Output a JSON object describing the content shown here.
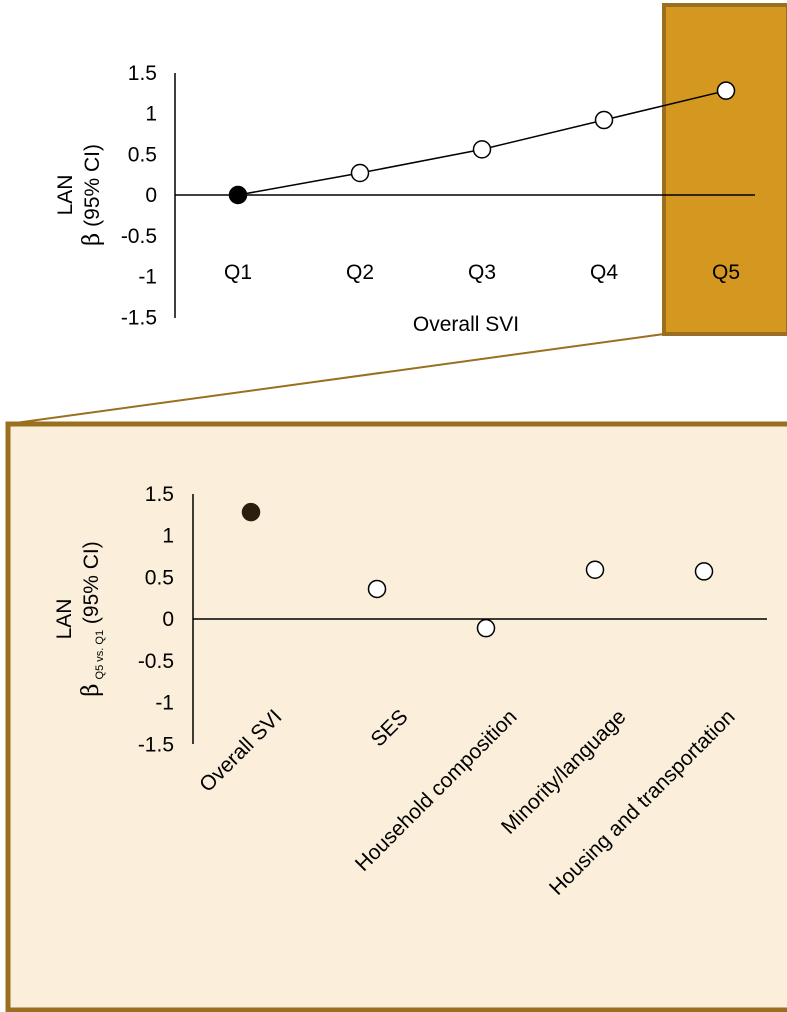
{
  "colors": {
    "highlight_fill": "#D4971F",
    "highlight_border": "#9A6F1F",
    "panel_fill": "#FBEFDC",
    "panel_border": "#9A6F1F",
    "connector": "#9A6F1F",
    "filled_marker": "#000000",
    "filled_marker_panel": "#2A1E10",
    "open_marker": "#ffffff",
    "line": "#000000"
  },
  "chart_data": [
    {
      "type": "line",
      "categories": [
        "Q1",
        "Q2",
        "Q3",
        "Q4",
        "Q5"
      ],
      "values": [
        0,
        0.27,
        0.56,
        0.92,
        1.28
      ],
      "filled": [
        true,
        false,
        false,
        false,
        false
      ],
      "highlighted_category": "Q5",
      "ylim": [
        -1.5,
        1.5
      ],
      "yticks": [
        {
          "v": 1.5,
          "label": "1.5"
        },
        {
          "v": 1,
          "label": "1"
        },
        {
          "v": 0.5,
          "label": "0.5"
        },
        {
          "v": 0,
          "label": "0"
        },
        {
          "v": -0.5,
          "label": "-0.5"
        },
        {
          "v": -1,
          "label": "-1"
        },
        {
          "v": -1.5,
          "label": "-1.5"
        }
      ],
      "ylabel_line1": "LAN",
      "ylabel_beta": "β",
      "ylabel_rest": " (95% CI)",
      "xlabel": "Overall SVI",
      "grid": false
    },
    {
      "type": "scatter",
      "categories": [
        "Overall SVI",
        "SES",
        "Household composition",
        "Minority/language",
        "Housing and transportation"
      ],
      "values": [
        1.28,
        0.36,
        -0.11,
        0.59,
        0.57
      ],
      "filled": [
        true,
        false,
        false,
        false,
        false
      ],
      "ylim": [
        -1.5,
        1.5
      ],
      "yticks": [
        {
          "v": 1.5,
          "label": "1.5"
        },
        {
          "v": 1,
          "label": "1"
        },
        {
          "v": 0.5,
          "label": "0.5"
        },
        {
          "v": 0,
          "label": "0"
        },
        {
          "v": -0.5,
          "label": "-0.5"
        },
        {
          "v": -1,
          "label": "-1"
        },
        {
          "v": -1.5,
          "label": "-1.5"
        }
      ],
      "ylabel_line1": "LAN",
      "ylabel_beta": "β",
      "ylabel_sub": "Q5 vs. Q1",
      "ylabel_rest": " (95% CI)",
      "grid": false
    }
  ]
}
